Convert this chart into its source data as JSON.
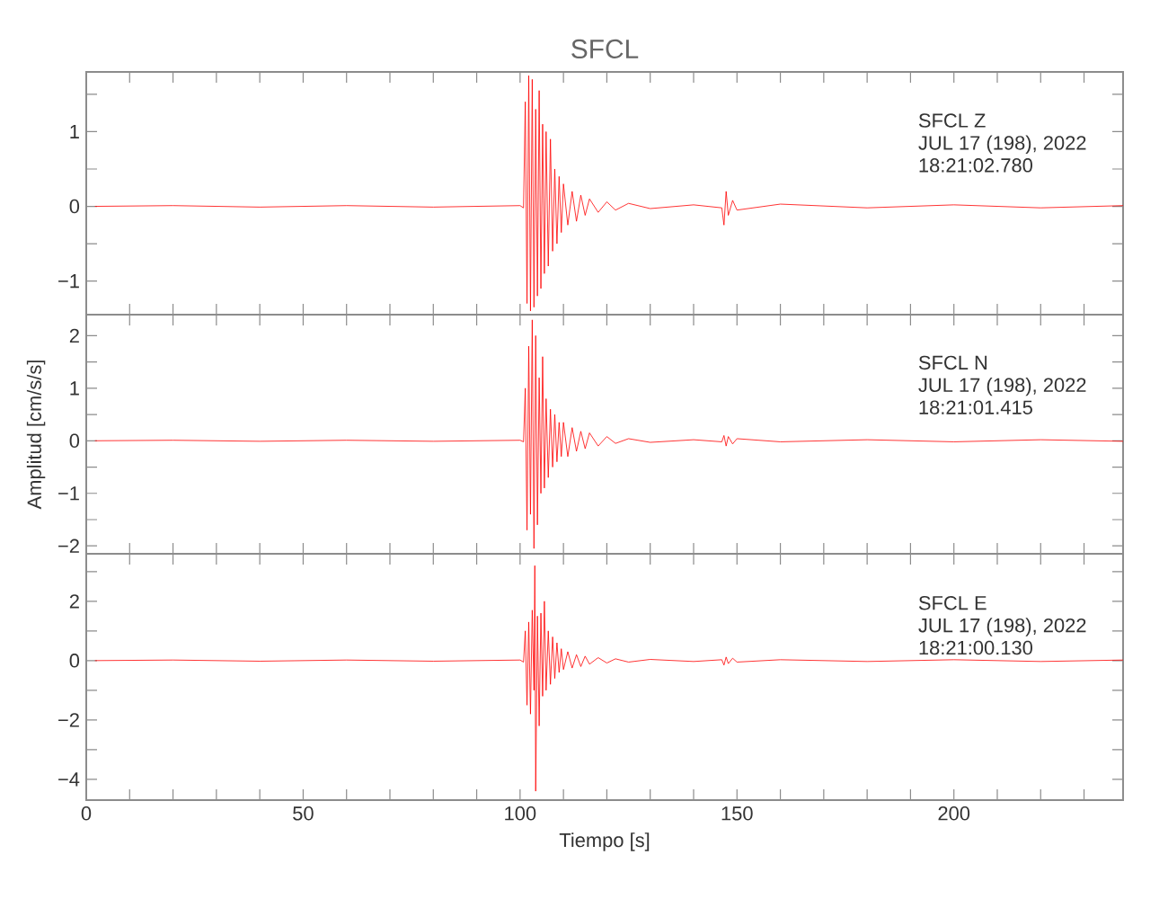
{
  "chart_data": [
    {
      "type": "line",
      "title": "SFCL",
      "annotations": [
        "SFCL   Z",
        "JUL 17 (198), 2022",
        "18:21:02.780"
      ],
      "xlim": [
        0,
        239
      ],
      "ylim": [
        -1.45,
        1.8
      ],
      "xticks": [
        0,
        {
          "value": 10,
          "label": null
        },
        {
          "value": 20,
          "label": null
        },
        {
          "value": 30,
          "label": null
        },
        {
          "value": 40,
          "label": null
        },
        50,
        {
          "value": 60,
          "label": null
        },
        {
          "value": 70,
          "label": null
        },
        {
          "value": 80,
          "label": null
        },
        {
          "value": 90,
          "label": null
        },
        100,
        {
          "value": 110,
          "label": null
        },
        {
          "value": 120,
          "label": null
        },
        {
          "value": 130,
          "label": null
        },
        {
          "value": 140,
          "label": null
        },
        150,
        {
          "value": 160,
          "label": null
        },
        {
          "value": 170,
          "label": null
        },
        {
          "value": 180,
          "label": null
        },
        {
          "value": 190,
          "label": null
        },
        200,
        {
          "value": 210,
          "label": null
        },
        {
          "value": 220,
          "label": null
        },
        {
          "value": 230,
          "label": null
        }
      ],
      "yticks": [
        {
          "value": -1,
          "label": "−1"
        },
        {
          "value": -0.5,
          "label": null
        },
        0,
        {
          "value": 0.5,
          "label": null
        },
        1,
        {
          "value": 1.5,
          "label": null
        }
      ],
      "tick_labels": "y",
      "series": [
        {
          "color": "#ff0000",
          "x": [
            2,
            20,
            40,
            60,
            80,
            100,
            100.8,
            101.2,
            101.6,
            102.0,
            102.4,
            102.8,
            103.2,
            103.6,
            104.0,
            104.4,
            104.8,
            105.2,
            105.6,
            106.0,
            106.5,
            107,
            107.5,
            108,
            108.5,
            109,
            109.5,
            110,
            111,
            112,
            113,
            114,
            115,
            116,
            118,
            120,
            122,
            125,
            130,
            140,
            146.5,
            147,
            147.5,
            148,
            149,
            150,
            160,
            180,
            200,
            220,
            239
          ],
          "values": [
            0,
            0.01,
            -0.01,
            0.01,
            -0.01,
            0.01,
            -0.02,
            1.4,
            -1.3,
            1.75,
            -1.4,
            1.7,
            -1.35,
            1.3,
            -1.2,
            1.55,
            -1.1,
            1.1,
            -0.9,
            1.0,
            -0.8,
            0.9,
            -0.6,
            0.5,
            -0.5,
            0.4,
            -0.35,
            0.3,
            -0.25,
            0.2,
            -0.2,
            0.15,
            -0.12,
            0.1,
            -0.08,
            0.06,
            -0.05,
            0.04,
            -0.03,
            0.02,
            -0.02,
            -0.25,
            0.2,
            -0.12,
            0.08,
            -0.05,
            0.03,
            -0.02,
            0.02,
            -0.02,
            0.01
          ]
        }
      ]
    },
    {
      "type": "line",
      "ylabel": "Amplitud [cm/s/s]",
      "annotations": [
        "SFCL   N",
        "JUL 17 (198), 2022",
        "18:21:01.415"
      ],
      "xlim": [
        0,
        239
      ],
      "ylim": [
        -2.15,
        2.4
      ],
      "xticks": [
        0,
        {
          "value": 10,
          "label": null
        },
        {
          "value": 20,
          "label": null
        },
        {
          "value": 30,
          "label": null
        },
        {
          "value": 40,
          "label": null
        },
        50,
        {
          "value": 60,
          "label": null
        },
        {
          "value": 70,
          "label": null
        },
        {
          "value": 80,
          "label": null
        },
        {
          "value": 90,
          "label": null
        },
        100,
        {
          "value": 110,
          "label": null
        },
        {
          "value": 120,
          "label": null
        },
        {
          "value": 130,
          "label": null
        },
        {
          "value": 140,
          "label": null
        },
        150,
        {
          "value": 160,
          "label": null
        },
        {
          "value": 170,
          "label": null
        },
        {
          "value": 180,
          "label": null
        },
        {
          "value": 190,
          "label": null
        },
        200,
        {
          "value": 210,
          "label": null
        },
        {
          "value": 220,
          "label": null
        },
        {
          "value": 230,
          "label": null
        }
      ],
      "yticks": [
        {
          "value": -2,
          "label": "−2"
        },
        {
          "value": -1.5,
          "label": null
        },
        {
          "value": -1,
          "label": "−1"
        },
        {
          "value": -0.5,
          "label": null
        },
        0,
        {
          "value": 0.5,
          "label": null
        },
        1,
        {
          "value": 1.5,
          "label": null
        },
        2
      ],
      "tick_labels": "y",
      "series": [
        {
          "color": "#ff0000",
          "x": [
            2,
            20,
            40,
            60,
            80,
            100,
            100.8,
            101.2,
            101.6,
            102.0,
            102.4,
            102.8,
            103.2,
            103.6,
            104.0,
            104.4,
            104.8,
            105.2,
            105.6,
            106.0,
            106.5,
            107,
            107.5,
            108,
            108.5,
            109,
            109.5,
            110,
            111,
            112,
            113,
            114,
            115,
            116,
            118,
            120,
            122,
            125,
            130,
            140,
            146.5,
            147,
            147.5,
            148,
            149,
            150,
            160,
            180,
            200,
            220,
            239
          ],
          "values": [
            0,
            0.01,
            -0.01,
            0.01,
            -0.01,
            0.01,
            -0.02,
            1.0,
            -1.7,
            1.8,
            -1.4,
            2.3,
            -2.05,
            2.0,
            -1.6,
            1.2,
            -1.0,
            1.6,
            -0.9,
            0.8,
            -0.7,
            0.6,
            -0.5,
            0.5,
            -0.4,
            0.35,
            -0.3,
            0.35,
            -0.3,
            0.25,
            -0.2,
            0.18,
            -0.15,
            0.15,
            -0.1,
            0.08,
            -0.05,
            0.04,
            -0.03,
            0.02,
            -0.02,
            0.1,
            -0.1,
            0.08,
            -0.06,
            0.04,
            -0.02,
            0.02,
            -0.02,
            0.02,
            -0.01
          ]
        }
      ]
    },
    {
      "type": "line",
      "xlabel": "Tiempo [s]",
      "annotations": [
        "SFCL   E",
        "JUL 17 (198), 2022",
        "18:21:00.130"
      ],
      "xlim": [
        0,
        239
      ],
      "ylim": [
        -4.7,
        3.6
      ],
      "xticks": [
        0,
        {
          "value": 10,
          "label": null
        },
        {
          "value": 20,
          "label": null
        },
        {
          "value": 30,
          "label": null
        },
        {
          "value": 40,
          "label": null
        },
        50,
        {
          "value": 60,
          "label": null
        },
        {
          "value": 70,
          "label": null
        },
        {
          "value": 80,
          "label": null
        },
        {
          "value": 90,
          "label": null
        },
        100,
        {
          "value": 110,
          "label": null
        },
        {
          "value": 120,
          "label": null
        },
        {
          "value": 130,
          "label": null
        },
        {
          "value": 140,
          "label": null
        },
        150,
        {
          "value": 160,
          "label": null
        },
        {
          "value": 170,
          "label": null
        },
        {
          "value": 180,
          "label": null
        },
        {
          "value": 190,
          "label": null
        },
        200,
        {
          "value": 210,
          "label": null
        },
        {
          "value": 220,
          "label": null
        },
        {
          "value": 230,
          "label": null
        }
      ],
      "yticks": [
        {
          "value": -4,
          "label": "−4"
        },
        {
          "value": -3,
          "label": null
        },
        {
          "value": -2,
          "label": "−2"
        },
        {
          "value": -1,
          "label": null
        },
        0,
        {
          "value": 1,
          "label": null
        },
        2,
        {
          "value": 3,
          "label": null
        }
      ],
      "series": [
        {
          "color": "#ff0000",
          "x": [
            2,
            20,
            40,
            60,
            80,
            100,
            100.8,
            101.2,
            101.6,
            102.0,
            102.4,
            102.8,
            103.2,
            103.4,
            103.6,
            104.0,
            104.4,
            104.8,
            105.2,
            105.6,
            106.0,
            106.5,
            107,
            107.5,
            108,
            108.5,
            109,
            109.5,
            110,
            111,
            112,
            113,
            114,
            115,
            116,
            118,
            120,
            122,
            125,
            130,
            140,
            146.5,
            147,
            147.5,
            148,
            149,
            150,
            160,
            180,
            200,
            220,
            239
          ],
          "values": [
            0,
            0.02,
            -0.02,
            0.02,
            -0.02,
            0.02,
            -0.05,
            1.0,
            -1.5,
            1.3,
            -1.8,
            1.7,
            -1.0,
            3.2,
            -4.4,
            1.5,
            -2.2,
            1.6,
            -1.2,
            2.0,
            -1.0,
            1.0,
            -0.8,
            0.8,
            -0.6,
            0.6,
            -0.4,
            0.4,
            -0.3,
            0.3,
            -0.25,
            0.2,
            -0.2,
            0.15,
            -0.12,
            0.1,
            -0.08,
            0.06,
            -0.05,
            0.04,
            -0.03,
            0.03,
            -0.15,
            0.12,
            -0.1,
            0.08,
            -0.05,
            0.03,
            -0.03,
            0.03,
            -0.03,
            0.02
          ]
        }
      ]
    }
  ]
}
